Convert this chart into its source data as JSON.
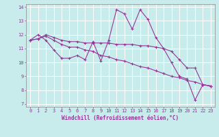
{
  "xlabel": "Windchill (Refroidissement éolien,°C)",
  "bg_color": "#c8ecec",
  "line_color": "#993399",
  "grid_color": "#ffffff",
  "xlim": [
    -0.5,
    23.5
  ],
  "ylim": [
    6.8,
    14.2
  ],
  "yticks": [
    7,
    8,
    9,
    10,
    11,
    12,
    13,
    14
  ],
  "xticks": [
    0,
    1,
    2,
    3,
    4,
    5,
    6,
    7,
    8,
    9,
    10,
    11,
    12,
    13,
    14,
    15,
    16,
    17,
    18,
    19,
    20,
    21,
    22,
    23
  ],
  "line1": [
    11.6,
    12.0,
    11.6,
    10.9,
    10.3,
    10.3,
    10.5,
    10.2,
    11.5,
    10.1,
    11.6,
    13.8,
    13.5,
    12.4,
    13.8,
    13.1,
    11.8,
    11.0,
    10.0,
    9.0,
    8.8,
    7.3,
    8.4,
    8.3
  ],
  "line2": [
    11.6,
    11.7,
    11.9,
    11.6,
    11.3,
    11.1,
    11.1,
    10.9,
    10.8,
    10.5,
    10.4,
    10.2,
    10.1,
    9.9,
    9.7,
    9.6,
    9.4,
    9.2,
    9.0,
    8.9,
    8.7,
    8.6,
    8.4,
    8.3
  ],
  "line3": [
    11.6,
    11.7,
    12.0,
    11.8,
    11.6,
    11.5,
    11.5,
    11.4,
    11.4,
    11.4,
    11.4,
    11.3,
    11.3,
    11.3,
    11.2,
    11.2,
    11.1,
    11.0,
    10.8,
    10.2,
    9.6,
    9.6,
    8.4,
    8.3
  ]
}
